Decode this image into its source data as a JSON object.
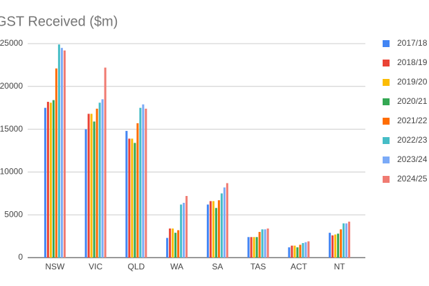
{
  "chart_data": {
    "type": "bar",
    "title": "GST Received ($m)",
    "categories": [
      "NSW",
      "VIC",
      "QLD",
      "WA",
      "SA",
      "TAS",
      "ACT",
      "NT"
    ],
    "series": [
      {
        "name": "2017/18",
        "color": "#4285f4",
        "values": [
          17500,
          15000,
          14800,
          2300,
          6200,
          2400,
          1200,
          2900
        ]
      },
      {
        "name": "2018/19",
        "color": "#ea4335",
        "values": [
          18200,
          16800,
          13900,
          3400,
          6600,
          2400,
          1400,
          2600
        ]
      },
      {
        "name": "2019/20",
        "color": "#fbbc04",
        "values": [
          18100,
          16800,
          13900,
          3400,
          6600,
          2400,
          1400,
          2700
        ]
      },
      {
        "name": "2020/21",
        "color": "#34a853",
        "values": [
          18400,
          15900,
          13400,
          2900,
          5800,
          2400,
          1200,
          2800
        ]
      },
      {
        "name": "2021/22",
        "color": "#ff6d01",
        "values": [
          22100,
          17400,
          15700,
          3200,
          6700,
          3000,
          1500,
          3300
        ]
      },
      {
        "name": "2022/23",
        "color": "#46bdc6",
        "values": [
          24900,
          18100,
          17500,
          6200,
          7500,
          3300,
          1700,
          4000
        ]
      },
      {
        "name": "2023/24",
        "color": "#7baaf7",
        "values": [
          24500,
          18500,
          17900,
          6400,
          8200,
          3300,
          1800,
          4000
        ]
      },
      {
        "name": "2024/25",
        "color": "#f07b72",
        "values": [
          24200,
          22200,
          17400,
          7200,
          8700,
          3400,
          1900,
          4200
        ]
      }
    ],
    "ylim": [
      0,
      25000
    ],
    "yticks": [
      0,
      5000,
      10000,
      15000,
      20000,
      25000
    ],
    "grid": true,
    "legend": "right"
  }
}
